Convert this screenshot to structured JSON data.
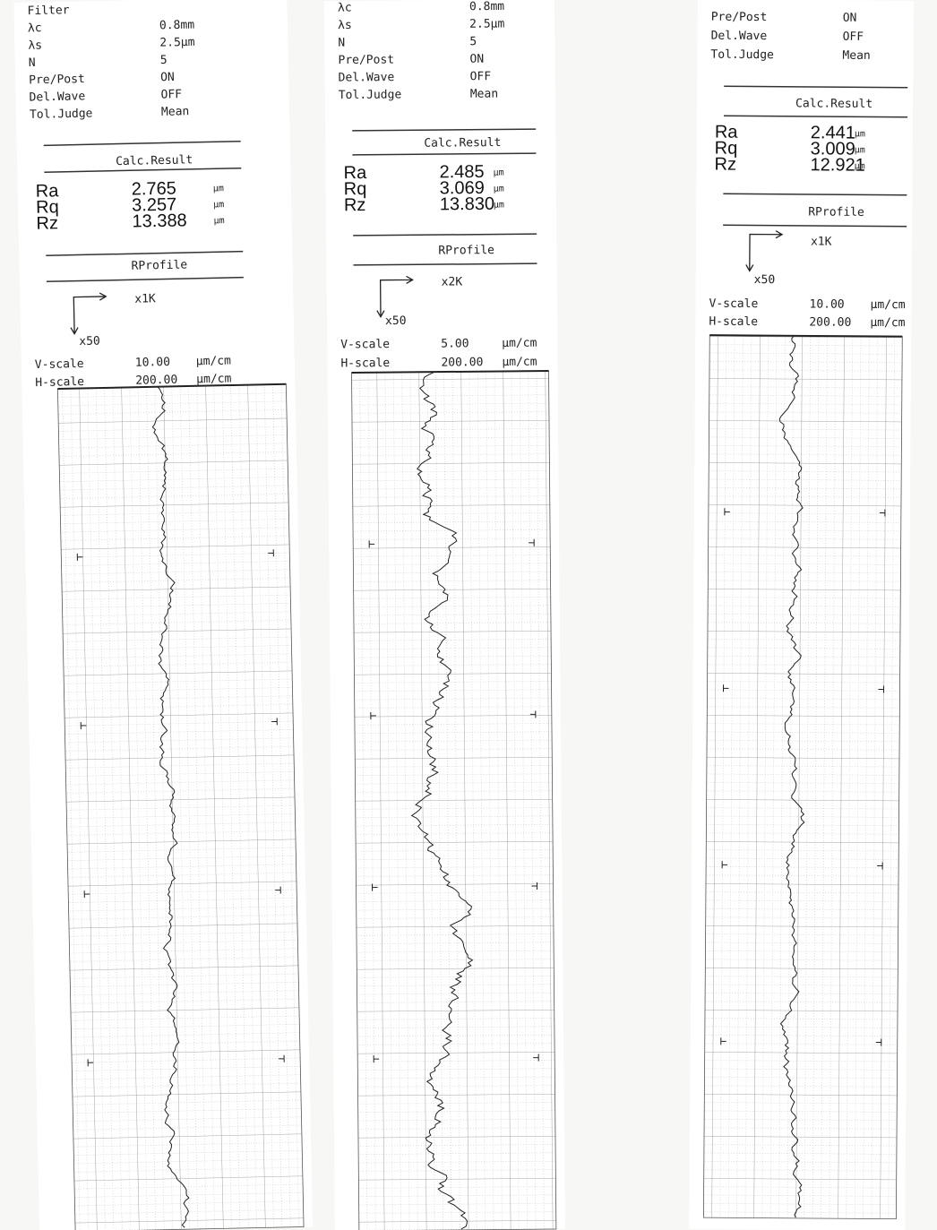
{
  "strips": [
    {
      "params": [
        {
          "label": "Filter"
        },
        {
          "label": "λc",
          "value": "0.8mm"
        },
        {
          "label": "λs",
          "value": "2.5µm"
        },
        {
          "label": "N",
          "value": "5"
        },
        {
          "label": "Pre/Post",
          "value": "ON"
        },
        {
          "label": "Del.Wave",
          "value": "OFF"
        },
        {
          "label": "Tol.Judge",
          "value": "Mean"
        }
      ],
      "calc_title": "Calc.Result",
      "results": [
        {
          "name": "Ra",
          "value": "2.765",
          "unit": "µm"
        },
        {
          "name": "Rq",
          "value": "3.257",
          "unit": "µm"
        },
        {
          "name": "Rz",
          "value": "13.388",
          "unit": "µm"
        }
      ],
      "profile_title": "RProfile",
      "h_mag": "x1K",
      "v_mag": "x50",
      "scales": [
        {
          "label": "V-scale",
          "value": "10.00",
          "unit": "µm/cm"
        },
        {
          "label": "H-scale",
          "value": "200.00",
          "unit": "µm/cm"
        }
      ]
    },
    {
      "params": [
        {
          "label": "λc",
          "value": "0.8mm"
        },
        {
          "label": "λs",
          "value": "2.5µm"
        },
        {
          "label": "N",
          "value": "5"
        },
        {
          "label": "Pre/Post",
          "value": "ON"
        },
        {
          "label": "Del.Wave",
          "value": "OFF"
        },
        {
          "label": "Tol.Judge",
          "value": "Mean"
        }
      ],
      "calc_title": "Calc.Result",
      "results": [
        {
          "name": "Ra",
          "value": "2.485",
          "unit": "µm"
        },
        {
          "name": "Rq",
          "value": "3.069",
          "unit": "µm"
        },
        {
          "name": "Rz",
          "value": "13.830",
          "unit": "µm"
        }
      ],
      "profile_title": "RProfile",
      "h_mag": "x2K",
      "v_mag": "x50",
      "scales": [
        {
          "label": "V-scale",
          "value": "5.00",
          "unit": "µm/cm"
        },
        {
          "label": "H-scale",
          "value": "200.00",
          "unit": "µm/cm"
        }
      ]
    },
    {
      "params": [
        {
          "label": "Pre/Post",
          "value": "ON"
        },
        {
          "label": "Del.Wave",
          "value": "OFF"
        },
        {
          "label": "Tol.Judge",
          "value": "Mean"
        }
      ],
      "calc_title": "Calc.Result",
      "results": [
        {
          "name": "Ra",
          "value": "2.441",
          "unit": "µm"
        },
        {
          "name": "Rq",
          "value": "3.009",
          "unit": "µm"
        },
        {
          "name": "Rz",
          "value": "12.921",
          "unit": "µm"
        }
      ],
      "profile_title": "RProfile",
      "h_mag": "x1K",
      "v_mag": "x50",
      "scales": [
        {
          "label": "V-scale",
          "value": "10.00",
          "unit": "µm/cm"
        },
        {
          "label": "H-scale",
          "value": "200.00",
          "unit": "µm/cm"
        }
      ]
    }
  ]
}
